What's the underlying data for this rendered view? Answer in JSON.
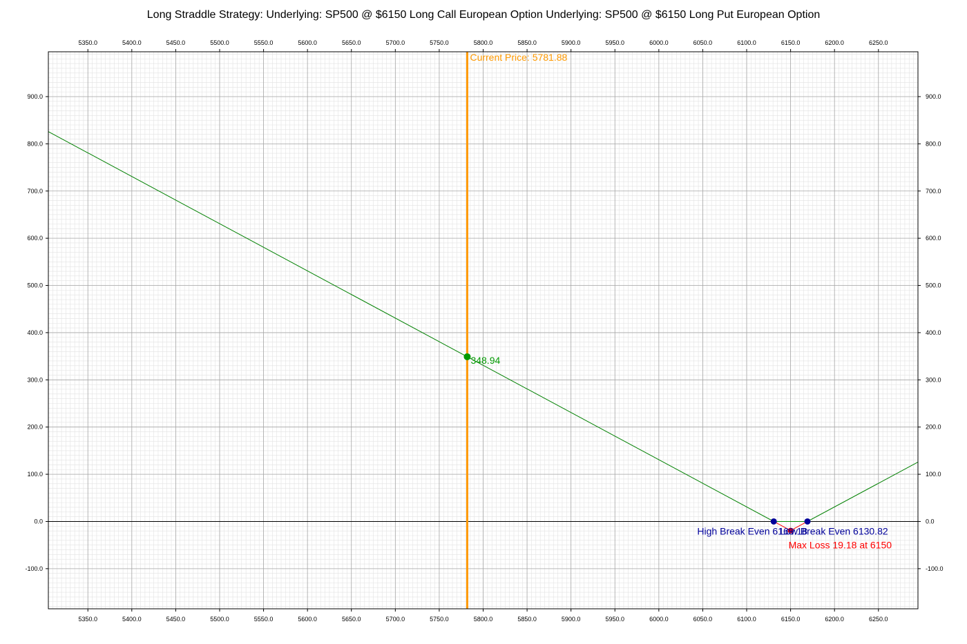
{
  "chart_data": {
    "type": "line",
    "title": "Long Straddle Strategy:   Underlying: SP500 @ $6150 Long Call European Option  Underlying: SP500 @ $6150 Long Put European Option",
    "xlabel": "",
    "ylabel": "",
    "xlim": [
      5305,
      6295
    ],
    "ylim": [
      -185,
      995
    ],
    "x_ticks": [
      5350,
      5400,
      5450,
      5500,
      5550,
      5600,
      5650,
      5700,
      5750,
      5800,
      5850,
      5900,
      5950,
      6000,
      6050,
      6100,
      6150,
      6200,
      6250
    ],
    "x_tick_labels": [
      "5350.0",
      "5400.0",
      "5450.0",
      "5500.0",
      "5550.0",
      "5600.0",
      "5650.0",
      "5700.0",
      "5750.0",
      "5800.0",
      "5850.0",
      "5900.0",
      "5950.0",
      "6000.0",
      "6050.0",
      "6100.0",
      "6150.0",
      "6200.0",
      "6250.0"
    ],
    "y_ticks": [
      -100,
      0,
      100,
      200,
      300,
      400,
      500,
      600,
      700,
      800,
      900
    ],
    "y_tick_labels": [
      "-100.0",
      "0.0",
      "100.0",
      "200.0",
      "300.0",
      "400.0",
      "500.0",
      "600.0",
      "700.0",
      "800.0",
      "900.0"
    ],
    "grid": true,
    "minor_grid": true,
    "series": [
      {
        "color": "#008000",
        "x": [
          5305,
          6130.82,
          6169.18,
          6295
        ],
        "y": [
          825.82,
          0,
          0,
          125.82
        ]
      },
      {
        "color": "#ff0000",
        "x": [
          6130.82,
          6150,
          6169.18
        ],
        "y": [
          0,
          -19.18,
          0
        ]
      }
    ],
    "zero_line": 0,
    "current_price": {
      "x": 5781.88,
      "label": "Current Price: 5781.88",
      "color": "#ff9900"
    },
    "current_value": {
      "x": 5781.88,
      "y": 348.94,
      "label": "348.94",
      "color": "#009900"
    },
    "break_even_points": [
      {
        "x": 6130.82,
        "y": 0,
        "label": "Low Break Even 6130.82"
      },
      {
        "x": 6169.18,
        "y": 0,
        "label": "High Break Even 6169.18"
      }
    ],
    "break_even_color": "#000099",
    "max_loss": {
      "x": 6150,
      "y": -19.18,
      "label": "Max Loss 19.18 at 6150",
      "color": "#ff0000"
    }
  }
}
